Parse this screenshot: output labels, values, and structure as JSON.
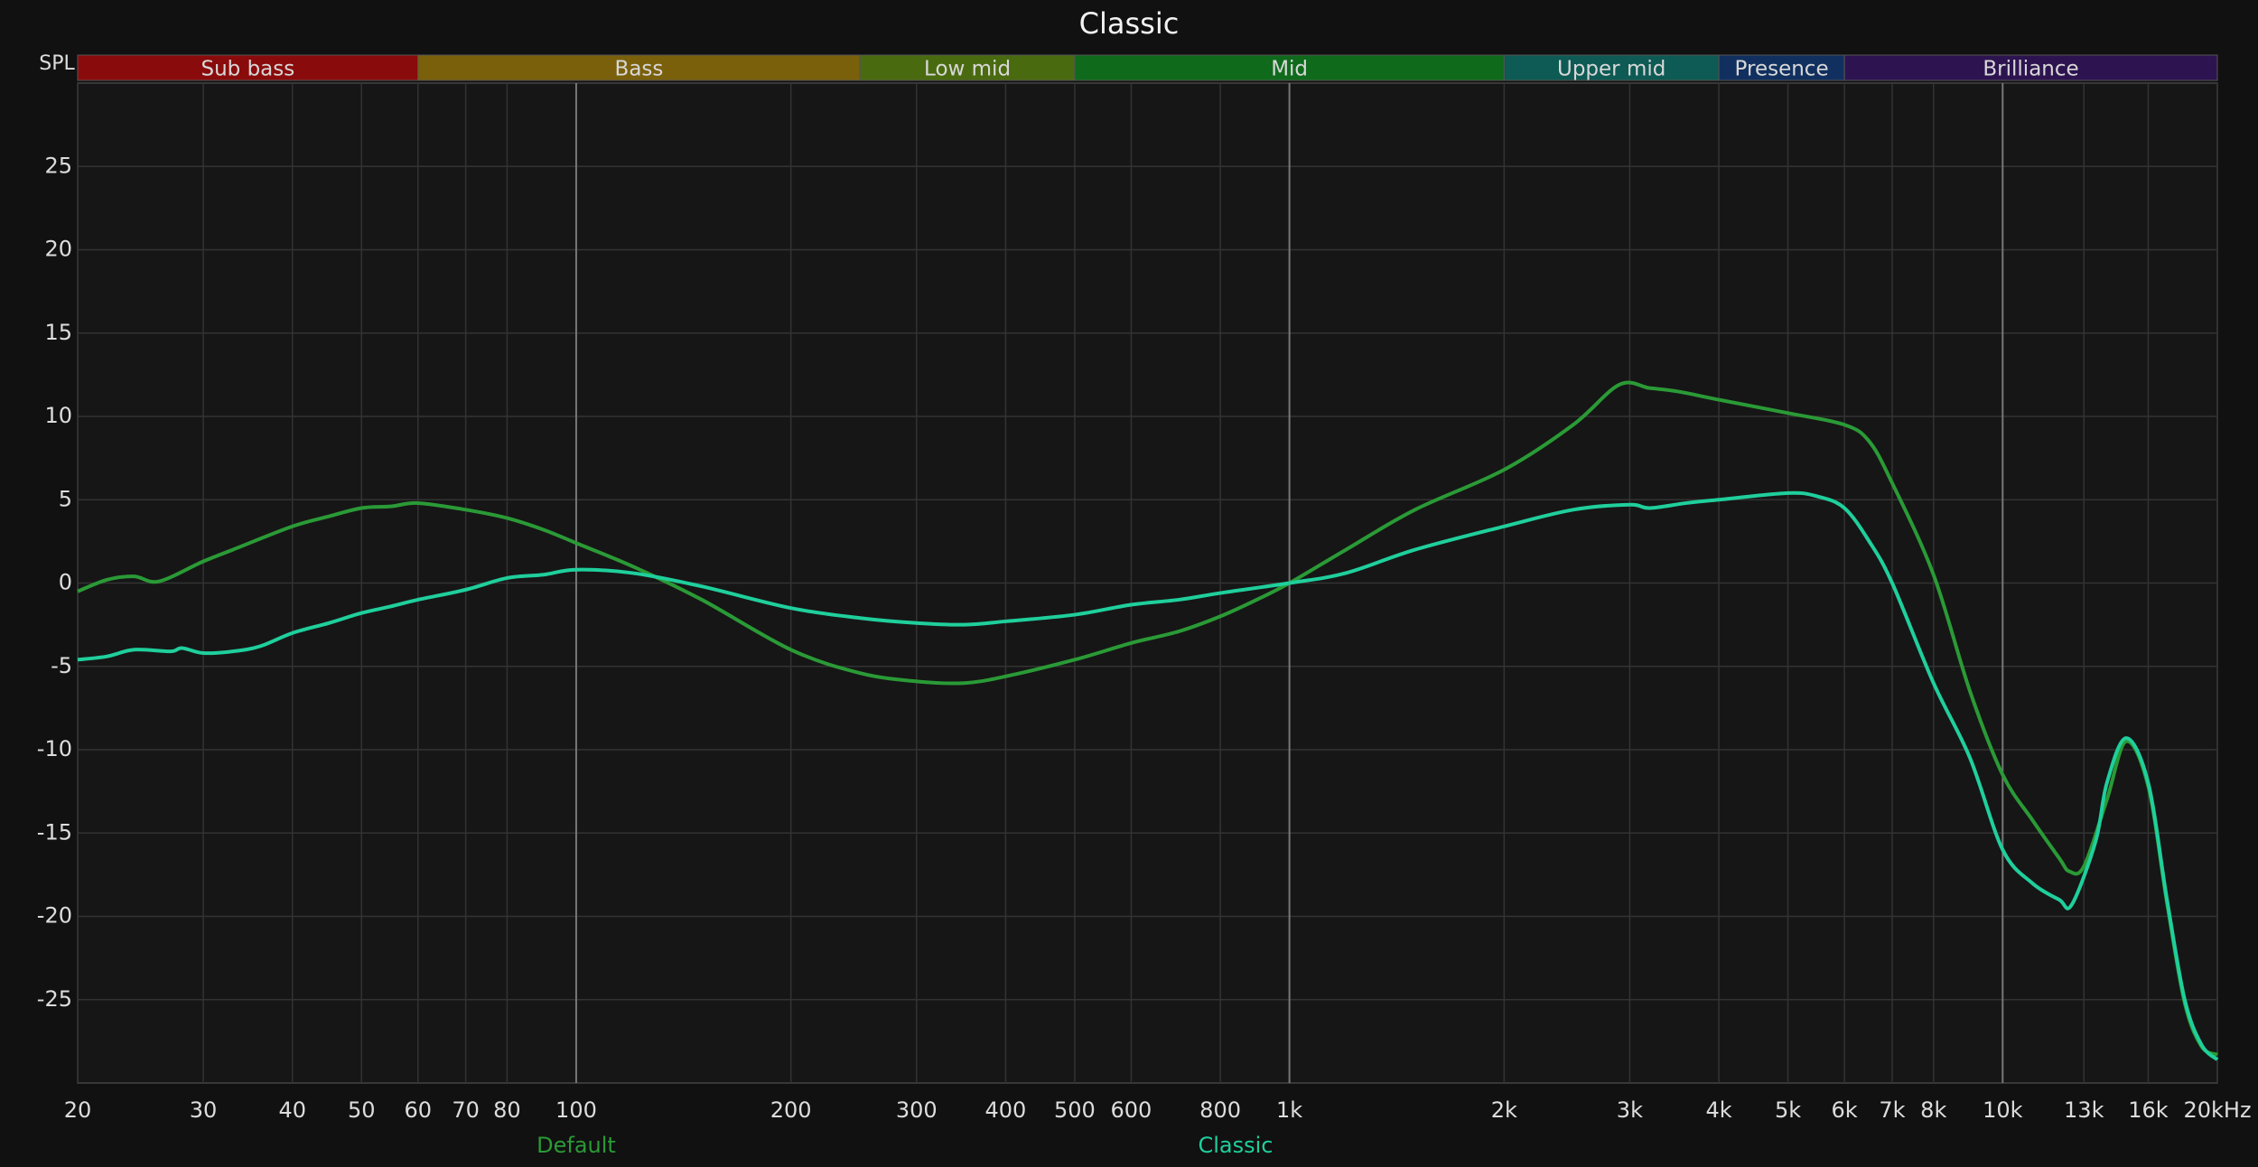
{
  "chart_data": {
    "type": "line",
    "title": "Classic",
    "ylabel": "SPL",
    "xscale": "log",
    "xlim": [
      20,
      20000
    ],
    "ylim": [
      -30,
      30
    ],
    "xticks": [
      20,
      30,
      40,
      50,
      60,
      70,
      80,
      100,
      200,
      300,
      400,
      500,
      600,
      800,
      {
        "value": 1000,
        "label": "1k"
      },
      {
        "value": 2000,
        "label": "2k"
      },
      {
        "value": 3000,
        "label": "3k"
      },
      {
        "value": 4000,
        "label": "4k"
      },
      {
        "value": 5000,
        "label": "5k"
      },
      {
        "value": 6000,
        "label": "6k"
      },
      {
        "value": 7000,
        "label": "7k"
      },
      {
        "value": 8000,
        "label": "8k"
      },
      {
        "value": 10000,
        "label": "10k"
      },
      {
        "value": 13000,
        "label": "13k"
      },
      {
        "value": 16000,
        "label": "16k"
      },
      {
        "value": 20000,
        "label": "20kHz"
      }
    ],
    "yticks": [
      -25,
      -20,
      -15,
      -10,
      -5,
      0,
      5,
      10,
      15,
      20,
      25
    ],
    "grid": true,
    "bands": [
      {
        "name": "Sub bass",
        "start": 20,
        "end": 60,
        "color": "#8a0b0b"
      },
      {
        "name": "Bass",
        "start": 60,
        "end": 250,
        "color": "#7a600b"
      },
      {
        "name": "Low mid",
        "start": 250,
        "end": 500,
        "color": "#4a6a10"
      },
      {
        "name": "Mid",
        "start": 500,
        "end": 2000,
        "color": "#0f6a1c"
      },
      {
        "name": "Upper mid",
        "start": 2000,
        "end": 4000,
        "color": "#0e5a54"
      },
      {
        "name": "Presence",
        "start": 4000,
        "end": 6000,
        "color": "#11305f"
      },
      {
        "name": "Brilliance",
        "start": 6000,
        "end": 20000,
        "color": "#2d1450"
      }
    ],
    "series": [
      {
        "name": "Default",
        "color": "#2a9a36",
        "x": [
          20,
          22,
          24,
          26,
          30,
          33,
          40,
          45,
          50,
          55,
          60,
          70,
          80,
          90,
          100,
          120,
          150,
          200,
          250,
          300,
          350,
          400,
          500,
          600,
          700,
          800,
          900,
          1000,
          1200,
          1500,
          2000,
          2500,
          2900,
          3200,
          3500,
          4000,
          5000,
          6000,
          6500,
          7000,
          8000,
          9000,
          10000,
          11000,
          12000,
          12400,
          13000,
          14000,
          14900,
          16000,
          17000,
          18000,
          19000,
          20000
        ],
        "values": [
          -0.5,
          0.2,
          0.4,
          0.1,
          1.3,
          2.0,
          3.4,
          4.0,
          4.5,
          4.6,
          4.8,
          4.4,
          3.9,
          3.2,
          2.4,
          1.0,
          -1.0,
          -4.0,
          -5.4,
          -5.9,
          -6.0,
          -5.6,
          -4.6,
          -3.6,
          -2.9,
          -2.0,
          -1.0,
          0.0,
          2.0,
          4.4,
          6.8,
          9.5,
          11.9,
          11.7,
          11.5,
          11.0,
          10.2,
          9.5,
          8.5,
          6.0,
          0.5,
          -6.5,
          -11.5,
          -14.2,
          -16.5,
          -17.3,
          -17.0,
          -13.0,
          -9.5,
          -12.2,
          -19.2,
          -25.2,
          -27.8,
          -28.3
        ]
      },
      {
        "name": "Classic",
        "color": "#1fcf9c",
        "x": [
          20,
          22,
          24,
          27,
          28,
          30,
          33,
          36,
          40,
          45,
          50,
          55,
          60,
          70,
          80,
          90,
          100,
          120,
          150,
          200,
          250,
          300,
          350,
          400,
          500,
          600,
          700,
          800,
          1000,
          1200,
          1500,
          2000,
          2500,
          3000,
          3200,
          3600,
          4000,
          5000,
          5500,
          6000,
          6500,
          7000,
          8000,
          9000,
          10000,
          11000,
          12000,
          12500,
          13500,
          14000,
          14900,
          16000,
          17000,
          18000,
          19000,
          20000
        ],
        "values": [
          -4.6,
          -4.4,
          -4.0,
          -4.1,
          -3.9,
          -4.2,
          -4.1,
          -3.8,
          -3.0,
          -2.4,
          -1.8,
          -1.4,
          -1.0,
          -0.4,
          0.3,
          0.5,
          0.8,
          0.6,
          -0.2,
          -1.5,
          -2.1,
          -2.4,
          -2.5,
          -2.3,
          -1.9,
          -1.3,
          -1.0,
          -0.6,
          0.0,
          0.6,
          2.0,
          3.4,
          4.4,
          4.7,
          4.5,
          4.8,
          5.0,
          5.4,
          5.2,
          4.5,
          2.5,
          0.0,
          -6.0,
          -10.5,
          -16.0,
          -18.0,
          -19.0,
          -19.3,
          -15.5,
          -12.0,
          -9.3,
          -12.0,
          -19.0,
          -25.0,
          -27.7,
          -28.6
        ]
      }
    ]
  }
}
